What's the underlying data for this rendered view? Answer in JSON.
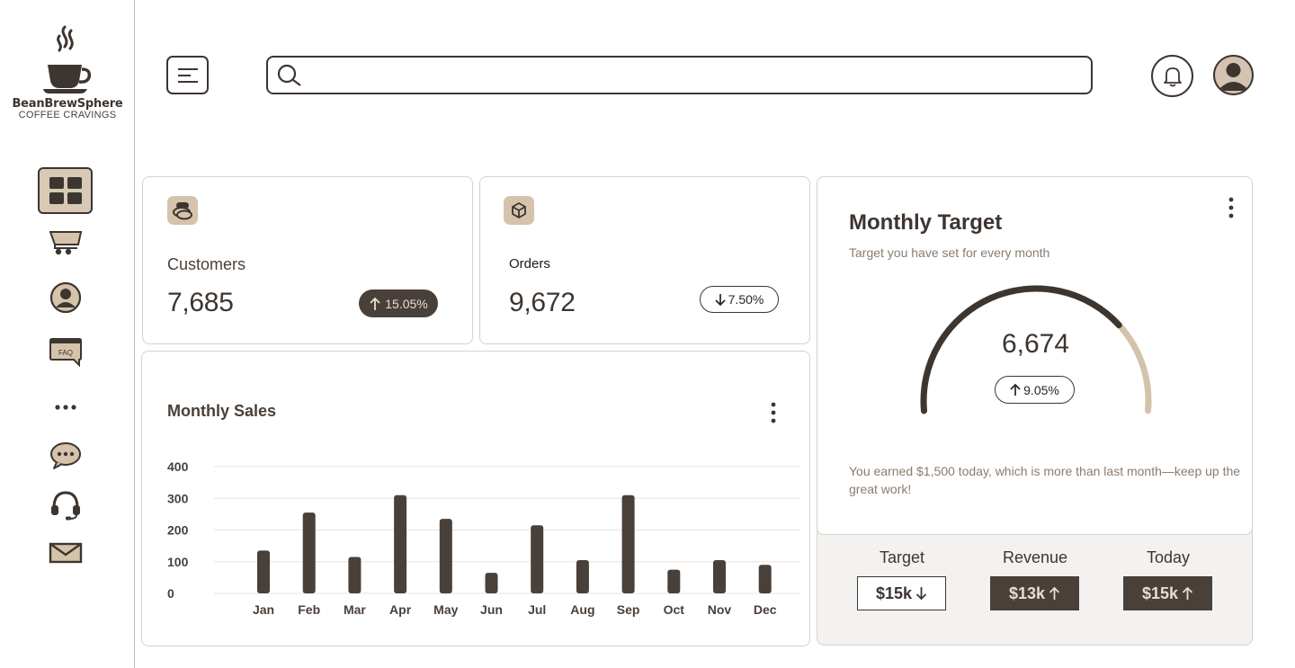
{
  "brand": {
    "name": "BeanBrewSphere",
    "tagline": "COFFEE CRAVINGS"
  },
  "sidebar": {
    "items": [
      {
        "icon": "dashboard-grid-icon",
        "active": true
      },
      {
        "icon": "cart-icon"
      },
      {
        "icon": "user-icon"
      },
      {
        "icon": "faq-icon",
        "label": "FAQ"
      },
      {
        "icon": "more-dots-icon"
      },
      {
        "icon": "chat-icon"
      },
      {
        "icon": "headset-icon"
      },
      {
        "icon": "mail-icon"
      }
    ]
  },
  "search": {
    "placeholder": "",
    "value": ""
  },
  "stats": {
    "customers": {
      "label": "Customers",
      "value": "7,685",
      "change": "15.05%",
      "direction": "up"
    },
    "orders": {
      "label": "Orders",
      "value": "9,672",
      "change": "7.50%",
      "direction": "down"
    }
  },
  "monthly_sales": {
    "title": "Monthly Sales"
  },
  "chart_data": {
    "type": "bar",
    "title": "Monthly Sales",
    "xlabel": "",
    "ylabel": "",
    "categories": [
      "Jan",
      "Feb",
      "Mar",
      "Apr",
      "May",
      "Jun",
      "Jul",
      "Aug",
      "Sep",
      "Oct",
      "Nov",
      "Dec"
    ],
    "values": [
      135,
      255,
      115,
      310,
      235,
      65,
      215,
      105,
      310,
      75,
      105,
      90
    ],
    "ticks": [
      0,
      100,
      200,
      300,
      400
    ],
    "tick_labels": [
      "0",
      "100",
      "200",
      "300",
      "400"
    ],
    "grid": true,
    "color": "#4a403a"
  },
  "target": {
    "title": "Monthly Target",
    "subtitle": "Target you have set for every month",
    "value": "6,674",
    "progress": 0.75,
    "change": "9.05%",
    "note": "You earned $1,500 today, which is more than last month—keep up the great work!"
  },
  "summary": [
    {
      "label": "Target",
      "value": "$15k",
      "direction": "down",
      "style": "light"
    },
    {
      "label": "Revenue",
      "value": "$13k",
      "direction": "up",
      "style": "dark"
    },
    {
      "label": "Today",
      "value": "$15k",
      "direction": "up",
      "style": "dark"
    }
  ],
  "colors": {
    "accent": "#4a403a",
    "tan": "#d6c3ac",
    "muted_text": "#8a7c70",
    "gauge_track": "#d3c3ab"
  }
}
